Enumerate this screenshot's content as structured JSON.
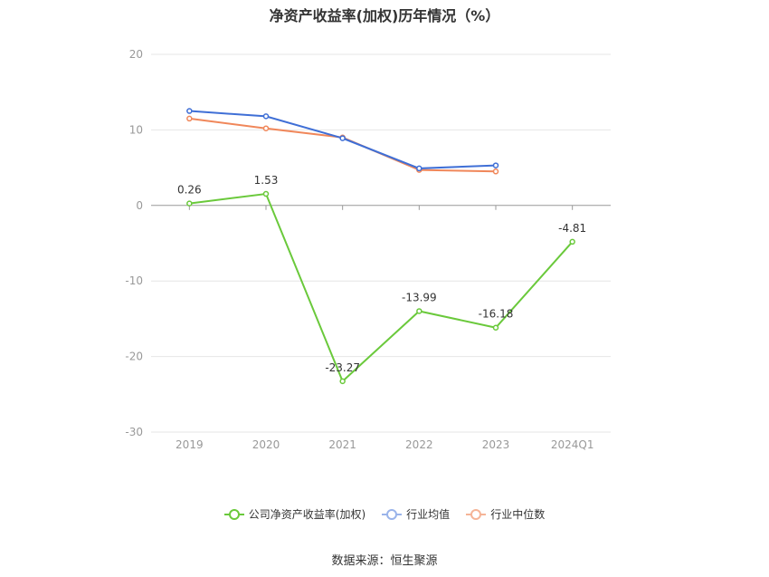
{
  "chart_data": {
    "type": "line",
    "title": "净资产收益率(加权)历年情况（%）",
    "categories": [
      "2019",
      "2020",
      "2021",
      "2022",
      "2023",
      "2024Q1"
    ],
    "yticks": [
      20,
      10,
      0,
      -10,
      -20,
      -30
    ],
    "ylim": [
      -30,
      20
    ],
    "grid": true,
    "legend_position": "bottom",
    "series": [
      {
        "name": "公司净资产收益率(加权)",
        "color": "#6ac93b",
        "values": [
          0.26,
          1.53,
          -23.27,
          -13.99,
          -16.18,
          -4.81
        ],
        "labels": [
          "0.26",
          "1.53",
          "-23.27",
          "-13.99",
          "-16.18",
          "-4.81"
        ]
      },
      {
        "name": "行业均值",
        "color": "#3f6fd6",
        "values": [
          12.5,
          11.8,
          8.9,
          4.9,
          5.3,
          null
        ]
      },
      {
        "name": "行业中位数",
        "color": "#f0875a",
        "values": [
          11.5,
          10.2,
          9.0,
          4.7,
          4.5,
          null
        ]
      }
    ]
  },
  "legend_swatch_colors": {
    "company": "#6ac93b",
    "mean": "#9ab4ea",
    "median": "#f5b497"
  },
  "source": "数据来源：恒生聚源"
}
